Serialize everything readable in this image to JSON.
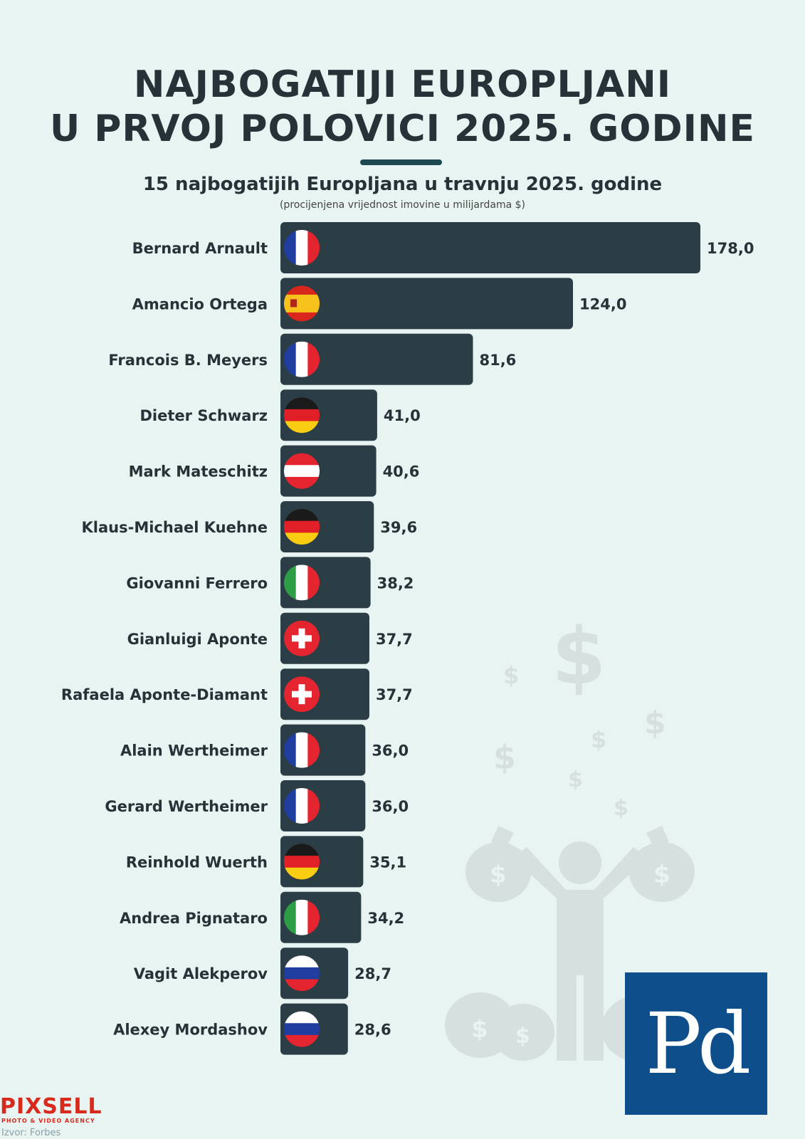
{
  "title_line1": "NAJBOGATIJI EUROPLJANI",
  "title_line2": "U PRVOJ POLOVICI 2025. GODINE",
  "subtitle": "15 najbogatijih Europljana u travnju 2025. godine",
  "note": "(procijenjena vrijednost imovine u milijardama $)",
  "logo_text": "Pd",
  "pixsell_brand": "PIXSELL",
  "pixsell_tagline": "PHOTO & VIDEO AGENCY",
  "source": "Izvor: Forbes",
  "colors": {
    "bar": "#2c3e45",
    "background": "#e8f4f1",
    "logo": "#0e4f8b",
    "pixsell": "#d9291c"
  },
  "chart_data": {
    "type": "bar",
    "orientation": "horizontal",
    "categories": [
      "Bernard Arnault",
      "Amancio Ortega",
      "Francois B. Meyers",
      "Dieter Schwarz",
      "Mark Mateschitz",
      "Klaus-Michael Kuehne",
      "Giovanni Ferrero",
      "Gianluigi Aponte",
      "Rafaela Aponte-Diamant",
      "Alain Wertheimer",
      "Gerard Wertheimer",
      "Reinhold Wuerth",
      "Andrea Pignataro",
      "Vagit Alekperov",
      "Alexey Mordashov"
    ],
    "values": [
      178.0,
      124.0,
      81.6,
      41.0,
      40.6,
      39.6,
      38.2,
      37.7,
      37.7,
      36.0,
      36.0,
      35.1,
      34.2,
      28.7,
      28.6
    ],
    "value_labels": [
      "178,0",
      "124,0",
      "81,6",
      "41,0",
      "40,6",
      "39,6",
      "38,2",
      "37,7",
      "37,7",
      "36,0",
      "36,0",
      "35,1",
      "34,2",
      "28,7",
      "28,6"
    ],
    "flags": [
      "france",
      "spain",
      "france",
      "germany",
      "austria",
      "germany",
      "italy",
      "switzerland",
      "switzerland",
      "france",
      "france",
      "germany",
      "italy",
      "russia",
      "russia"
    ],
    "xlim": [
      0,
      178.0
    ],
    "grid": false
  }
}
